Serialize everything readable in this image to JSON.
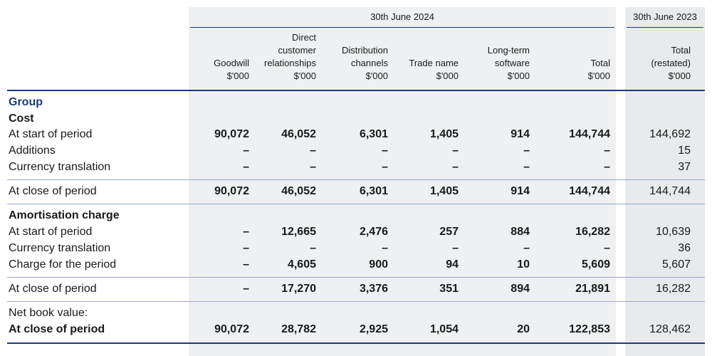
{
  "periods": {
    "current": "30th June 2024",
    "prior": "30th June 2023"
  },
  "columns": [
    {
      "lines": [
        "Goodwill",
        "$'000"
      ]
    },
    {
      "lines": [
        "Direct",
        "customer",
        "relationships",
        "$'000"
      ]
    },
    {
      "lines": [
        "Distribution",
        "channels",
        "$'000"
      ]
    },
    {
      "lines": [
        "Trade name",
        "$'000"
      ]
    },
    {
      "lines": [
        "Long-term",
        "software",
        "$'000"
      ]
    },
    {
      "lines": [
        "Total",
        "$'000"
      ]
    },
    {
      "lines": [
        "Total",
        "(restated)",
        "$'000"
      ]
    }
  ],
  "sections": {
    "group": "Group",
    "cost": "Cost",
    "amortisation": "Amortisation charge",
    "nbv": "Net book value:"
  },
  "rows": [
    {
      "label": "At start of period",
      "values": [
        "90,072",
        "46,052",
        "6,301",
        "1,405",
        "914",
        "144,744",
        "144,692"
      ]
    },
    {
      "label": "Additions",
      "values": [
        "–",
        "–",
        "–",
        "–",
        "–",
        "–",
        "15"
      ]
    },
    {
      "label": "Currency translation",
      "values": [
        "–",
        "–",
        "–",
        "–",
        "–",
        "–",
        "37"
      ]
    },
    {
      "label": "At close of period",
      "values": [
        "90,072",
        "46,052",
        "6,301",
        "1,405",
        "914",
        "144,744",
        "144,744"
      ]
    },
    {
      "label": "At start of period",
      "values": [
        "–",
        "12,665",
        "2,476",
        "257",
        "884",
        "16,282",
        "10,639"
      ]
    },
    {
      "label": "Currency translation",
      "values": [
        "–",
        "–",
        "–",
        "–",
        "–",
        "–",
        "36"
      ]
    },
    {
      "label": "Charge for the period",
      "values": [
        "–",
        "4,605",
        "900",
        "94",
        "10",
        "5,609",
        "5,607"
      ]
    },
    {
      "label": "At close of period",
      "values": [
        "–",
        "17,270",
        "3,376",
        "351",
        "894",
        "21,891",
        "16,282"
      ]
    },
    {
      "label": "At close of period",
      "values": [
        "90,072",
        "28,782",
        "2,925",
        "1,054",
        "20",
        "122,853",
        "128,462"
      ]
    }
  ]
}
